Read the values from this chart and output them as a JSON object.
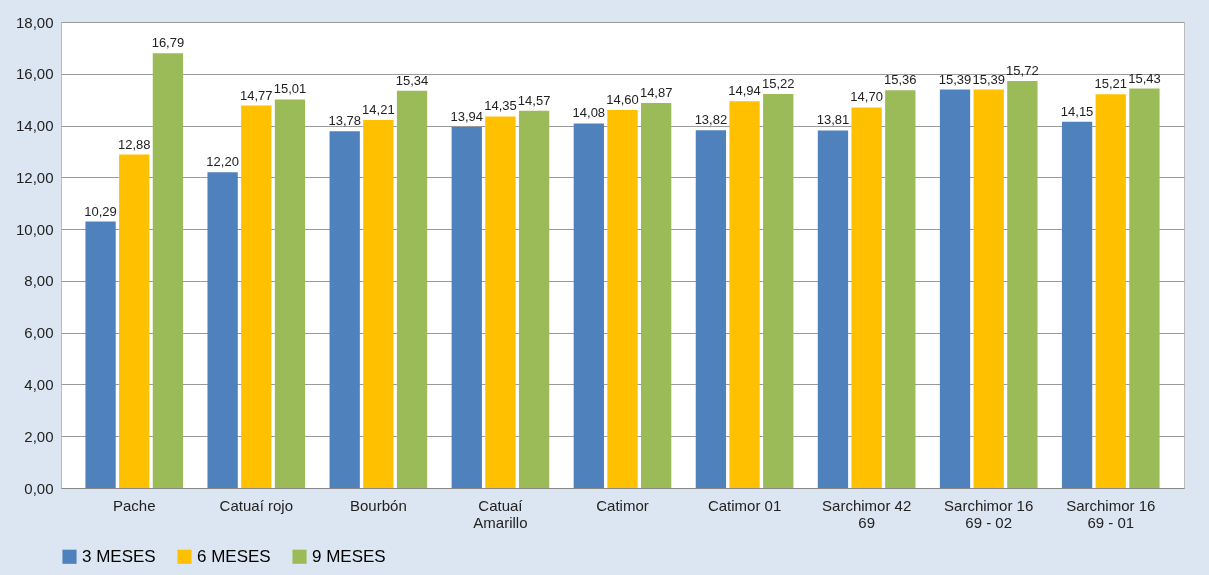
{
  "chart_data": {
    "type": "bar",
    "categories": [
      "Pache",
      "Catuaí rojo",
      "Bourbón",
      "Catuaí Amarillo",
      "Catimor",
      "Catimor 01",
      "Sarchimor 42 69",
      "Sarchimor 16 69 - 02",
      "Sarchimor 16 69 - 01"
    ],
    "series": [
      {
        "name": "3 MESES",
        "color": "#4f81bd",
        "values": [
          10.29,
          12.2,
          13.78,
          13.94,
          14.08,
          13.82,
          13.81,
          15.39,
          14.15
        ],
        "value_labels": [
          "10,29",
          "12,20",
          "13,78",
          "13,94",
          "14,08",
          "13,82",
          "13,81",
          "15,39",
          "14,15"
        ]
      },
      {
        "name": "6 MESES",
        "color": "#ffc000",
        "values": [
          12.88,
          14.77,
          14.21,
          14.35,
          14.6,
          14.94,
          14.7,
          15.39,
          15.21
        ],
        "value_labels": [
          "12,88",
          "14,77",
          "14,21",
          "14,35",
          "14,60",
          "14,94",
          "14,70",
          "15,39",
          "15,21"
        ]
      },
      {
        "name": "9 MESES",
        "color": "#9bbb59",
        "values": [
          16.79,
          15.01,
          15.34,
          14.57,
          14.87,
          15.22,
          15.36,
          15.72,
          15.43
        ],
        "value_labels": [
          "16,79",
          "15,01",
          "15,34",
          "14,57",
          "14,87",
          "15,22",
          "15,36",
          "15,72",
          "15,43"
        ]
      }
    ],
    "ylim": [
      0,
      18
    ],
    "yticks": [
      {
        "value": 0,
        "label": "0,00"
      },
      {
        "value": 2,
        "label": "2,00"
      },
      {
        "value": 4,
        "label": "4,00"
      },
      {
        "value": 6,
        "label": "6,00"
      },
      {
        "value": 8,
        "label": "8,00"
      },
      {
        "value": 10,
        "label": "10,00"
      },
      {
        "value": 12,
        "label": "12,00"
      },
      {
        "value": 14,
        "label": "14,00"
      },
      {
        "value": 16,
        "label": "16,00"
      },
      {
        "value": 18,
        "label": "18,00"
      }
    ],
    "grid": "y",
    "legend": "bottom"
  }
}
